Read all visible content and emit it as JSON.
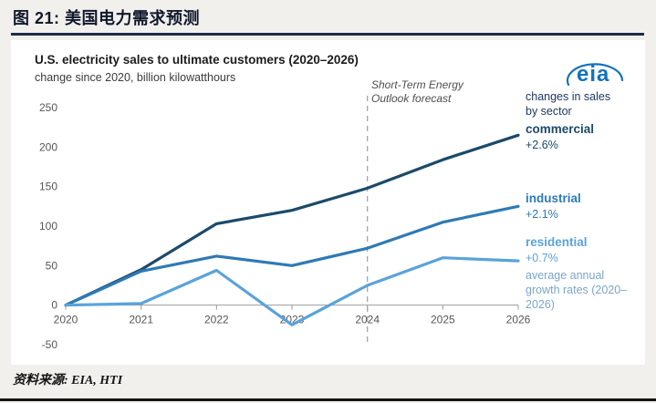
{
  "page": {
    "figure_title": "图 21:  美国电力需求预测",
    "source": "资料来源: EIA, HTI"
  },
  "chart": {
    "title": "U.S. electricity sales to ultimate customers (2020–2026)",
    "subtitle": "change since 2020, billion kilowatthours",
    "forecast_line1": "Short-Term Energy",
    "forecast_line2": "Outlook forecast",
    "logo_text": "eia",
    "legend_header": "changes in sales by sector",
    "growth_note": "average annual growth rates (2020–2026)"
  },
  "chart_data": {
    "type": "line",
    "title": "U.S. electricity sales to ultimate customers (2020–2026)",
    "subtitle": "change since 2020, billion kilowatthours",
    "x": [
      2020,
      2021,
      2022,
      2023,
      2024,
      2025,
      2026
    ],
    "series": [
      {
        "name": "commercial",
        "growth_rate": "+2.6%",
        "color": "#1b4a6b",
        "values": [
          0,
          45,
          103,
          120,
          148,
          184,
          215
        ]
      },
      {
        "name": "industrial",
        "growth_rate": "+2.1%",
        "color": "#2e7ab5",
        "values": [
          0,
          43,
          62,
          50,
          72,
          105,
          125
        ]
      },
      {
        "name": "residential",
        "growth_rate": "+0.7%",
        "color": "#5ba3d9",
        "values": [
          0,
          2,
          44,
          -25,
          25,
          60,
          56
        ]
      }
    ],
    "ylim": [
      -50,
      250
    ],
    "yticks": [
      -50,
      0,
      50,
      100,
      150,
      200,
      250
    ],
    "xlabel": "",
    "ylabel": "change since 2020, billion kilowatthours",
    "forecast_boundary_x": 2024,
    "grid": false,
    "legend_position": "right"
  },
  "colors": {
    "title_rule": "#1c2b4a",
    "legend_header": "#1f3864",
    "growth_note": "#7ba6c9",
    "eia_blue": "#1272ba",
    "axis": "#9b9b9b",
    "tick_label": "#565656",
    "forecast_line": "#a6a6a6"
  }
}
